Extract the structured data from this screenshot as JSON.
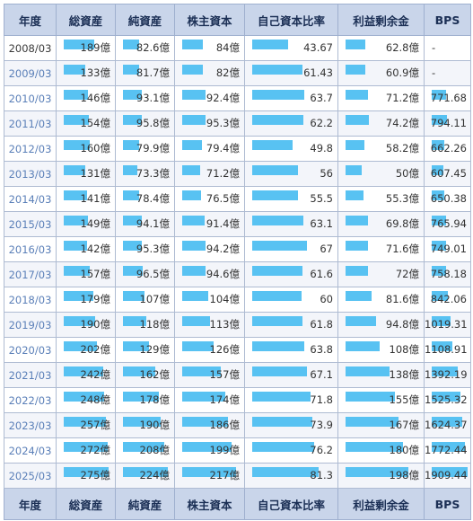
{
  "headers": [
    "年度",
    "総資産",
    "純資産",
    "株主資本",
    "自己資本比率",
    "利益剰余金",
    "BPS"
  ],
  "bar_color": "#58c2f2",
  "bar_max": {
    "total_assets": 275,
    "net_assets": 224,
    "shareholders_equity": 217,
    "equity_ratio": 81.3,
    "retained_earnings": 198,
    "bps": 1909.44
  },
  "rows": [
    {
      "year": "2008/03",
      "link": false,
      "total_assets": "189億",
      "total_assets_v": 189,
      "net_assets": "82.6億",
      "net_assets_v": 82.6,
      "shareholders_equity": "84億",
      "shareholders_equity_v": 84,
      "equity_ratio": "43.67",
      "equity_ratio_v": 43.67,
      "retained_earnings": "62.8億",
      "retained_earnings_v": 62.8,
      "bps": "-",
      "bps_v": null
    },
    {
      "year": "2009/03",
      "link": true,
      "total_assets": "133億",
      "total_assets_v": 133,
      "net_assets": "81.7億",
      "net_assets_v": 81.7,
      "shareholders_equity": "82億",
      "shareholders_equity_v": 82,
      "equity_ratio": "61.43",
      "equity_ratio_v": 61.43,
      "retained_earnings": "60.9億",
      "retained_earnings_v": 60.9,
      "bps": "-",
      "bps_v": null
    },
    {
      "year": "2010/03",
      "link": true,
      "total_assets": "146億",
      "total_assets_v": 146,
      "net_assets": "93.1億",
      "net_assets_v": 93.1,
      "shareholders_equity": "92.4億",
      "shareholders_equity_v": 92.4,
      "equity_ratio": "63.7",
      "equity_ratio_v": 63.7,
      "retained_earnings": "71.2億",
      "retained_earnings_v": 71.2,
      "bps": "771.68",
      "bps_v": 771.68
    },
    {
      "year": "2011/03",
      "link": true,
      "total_assets": "154億",
      "total_assets_v": 154,
      "net_assets": "95.8億",
      "net_assets_v": 95.8,
      "shareholders_equity": "95.3億",
      "shareholders_equity_v": 95.3,
      "equity_ratio": "62.2",
      "equity_ratio_v": 62.2,
      "retained_earnings": "74.2億",
      "retained_earnings_v": 74.2,
      "bps": "794.11",
      "bps_v": 794.11
    },
    {
      "year": "2012/03",
      "link": true,
      "total_assets": "160億",
      "total_assets_v": 160,
      "net_assets": "79.9億",
      "net_assets_v": 79.9,
      "shareholders_equity": "79.4億",
      "shareholders_equity_v": 79.4,
      "equity_ratio": "49.8",
      "equity_ratio_v": 49.8,
      "retained_earnings": "58.2億",
      "retained_earnings_v": 58.2,
      "bps": "662.26",
      "bps_v": 662.26
    },
    {
      "year": "2013/03",
      "link": true,
      "total_assets": "131億",
      "total_assets_v": 131,
      "net_assets": "73.3億",
      "net_assets_v": 73.3,
      "shareholders_equity": "71.2億",
      "shareholders_equity_v": 71.2,
      "equity_ratio": "56",
      "equity_ratio_v": 56,
      "retained_earnings": "50億",
      "retained_earnings_v": 50,
      "bps": "607.45",
      "bps_v": 607.45
    },
    {
      "year": "2014/03",
      "link": true,
      "total_assets": "141億",
      "total_assets_v": 141,
      "net_assets": "78.4億",
      "net_assets_v": 78.4,
      "shareholders_equity": "76.5億",
      "shareholders_equity_v": 76.5,
      "equity_ratio": "55.5",
      "equity_ratio_v": 55.5,
      "retained_earnings": "55.3億",
      "retained_earnings_v": 55.3,
      "bps": "650.38",
      "bps_v": 650.38
    },
    {
      "year": "2015/03",
      "link": true,
      "total_assets": "149億",
      "total_assets_v": 149,
      "net_assets": "94.1億",
      "net_assets_v": 94.1,
      "shareholders_equity": "91.4億",
      "shareholders_equity_v": 91.4,
      "equity_ratio": "63.1",
      "equity_ratio_v": 63.1,
      "retained_earnings": "69.8億",
      "retained_earnings_v": 69.8,
      "bps": "765.94",
      "bps_v": 765.94
    },
    {
      "year": "2016/03",
      "link": true,
      "total_assets": "142億",
      "total_assets_v": 142,
      "net_assets": "95.3億",
      "net_assets_v": 95.3,
      "shareholders_equity": "94.2億",
      "shareholders_equity_v": 94.2,
      "equity_ratio": "67",
      "equity_ratio_v": 67,
      "retained_earnings": "71.6億",
      "retained_earnings_v": 71.6,
      "bps": "749.01",
      "bps_v": 749.01
    },
    {
      "year": "2017/03",
      "link": true,
      "total_assets": "157億",
      "total_assets_v": 157,
      "net_assets": "96.5億",
      "net_assets_v": 96.5,
      "shareholders_equity": "94.6億",
      "shareholders_equity_v": 94.6,
      "equity_ratio": "61.6",
      "equity_ratio_v": 61.6,
      "retained_earnings": "72億",
      "retained_earnings_v": 72,
      "bps": "758.18",
      "bps_v": 758.18
    },
    {
      "year": "2018/03",
      "link": true,
      "total_assets": "179億",
      "total_assets_v": 179,
      "net_assets": "107億",
      "net_assets_v": 107,
      "shareholders_equity": "104億",
      "shareholders_equity_v": 104,
      "equity_ratio": "60",
      "equity_ratio_v": 60,
      "retained_earnings": "81.6億",
      "retained_earnings_v": 81.6,
      "bps": "842.06",
      "bps_v": 842.06
    },
    {
      "year": "2019/03",
      "link": true,
      "total_assets": "190億",
      "total_assets_v": 190,
      "net_assets": "118億",
      "net_assets_v": 118,
      "shareholders_equity": "113億",
      "shareholders_equity_v": 113,
      "equity_ratio": "61.8",
      "equity_ratio_v": 61.8,
      "retained_earnings": "94.8億",
      "retained_earnings_v": 94.8,
      "bps": "1019.31",
      "bps_v": 1019.31
    },
    {
      "year": "2020/03",
      "link": true,
      "total_assets": "202億",
      "total_assets_v": 202,
      "net_assets": "129億",
      "net_assets_v": 129,
      "shareholders_equity": "126億",
      "shareholders_equity_v": 126,
      "equity_ratio": "63.8",
      "equity_ratio_v": 63.8,
      "retained_earnings": "108億",
      "retained_earnings_v": 108,
      "bps": "1108.91",
      "bps_v": 1108.91
    },
    {
      "year": "2021/03",
      "link": true,
      "total_assets": "242億",
      "total_assets_v": 242,
      "net_assets": "162億",
      "net_assets_v": 162,
      "shareholders_equity": "157億",
      "shareholders_equity_v": 157,
      "equity_ratio": "67.1",
      "equity_ratio_v": 67.1,
      "retained_earnings": "138億",
      "retained_earnings_v": 138,
      "bps": "1392.19",
      "bps_v": 1392.19
    },
    {
      "year": "2022/03",
      "link": true,
      "total_assets": "248億",
      "total_assets_v": 248,
      "net_assets": "178億",
      "net_assets_v": 178,
      "shareholders_equity": "174億",
      "shareholders_equity_v": 174,
      "equity_ratio": "71.8",
      "equity_ratio_v": 71.8,
      "retained_earnings": "155億",
      "retained_earnings_v": 155,
      "bps": "1525.32",
      "bps_v": 1525.32
    },
    {
      "year": "2023/03",
      "link": true,
      "total_assets": "257億",
      "total_assets_v": 257,
      "net_assets": "190億",
      "net_assets_v": 190,
      "shareholders_equity": "186億",
      "shareholders_equity_v": 186,
      "equity_ratio": "73.9",
      "equity_ratio_v": 73.9,
      "retained_earnings": "167億",
      "retained_earnings_v": 167,
      "bps": "1624.37",
      "bps_v": 1624.37
    },
    {
      "year": "2024/03",
      "link": true,
      "total_assets": "272億",
      "total_assets_v": 272,
      "net_assets": "208億",
      "net_assets_v": 208,
      "shareholders_equity": "199億",
      "shareholders_equity_v": 199,
      "equity_ratio": "76.2",
      "equity_ratio_v": 76.2,
      "retained_earnings": "180億",
      "retained_earnings_v": 180,
      "bps": "1772.44",
      "bps_v": 1772.44
    },
    {
      "year": "2025/03",
      "link": true,
      "total_assets": "275億",
      "total_assets_v": 275,
      "net_assets": "224億",
      "net_assets_v": 224,
      "shareholders_equity": "217億",
      "shareholders_equity_v": 217,
      "equity_ratio": "81.3",
      "equity_ratio_v": 81.3,
      "retained_earnings": "198億",
      "retained_earnings_v": 198,
      "bps": "1909.44",
      "bps_v": 1909.44
    }
  ]
}
